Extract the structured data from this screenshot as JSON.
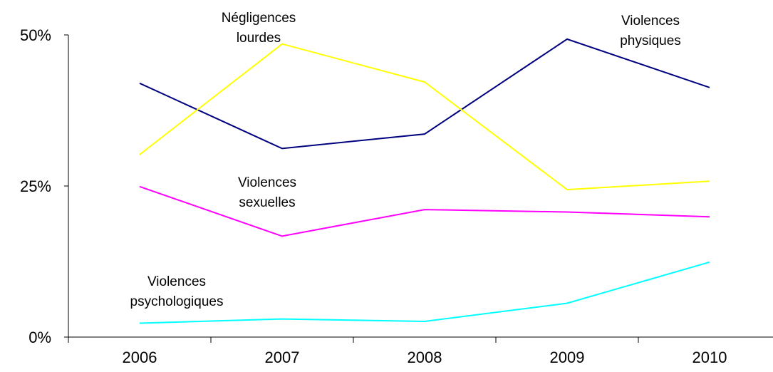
{
  "chart_data": {
    "type": "line",
    "categories": [
      "2006",
      "2007",
      "2008",
      "2009",
      "2010"
    ],
    "ylim": [
      0,
      50
    ],
    "yticks": [
      {
        "value": 0,
        "label": "0%"
      },
      {
        "value": 25,
        "label": "25%"
      },
      {
        "value": 50,
        "label": "50%"
      }
    ],
    "grid": false,
    "legend": "none",
    "series": [
      {
        "name": "Violences physiques",
        "label_lines": [
          "Violences",
          "physiques"
        ],
        "color": "#000080",
        "values": [
          42,
          31.2,
          33.6,
          49.3,
          41.3
        ]
      },
      {
        "name": "Négligences lourdes",
        "label_lines": [
          "Négligences",
          "lourdes"
        ],
        "color": "#FFFF00",
        "values": [
          30.2,
          48.5,
          42.2,
          24.4,
          25.8
        ]
      },
      {
        "name": "Violences sexuelles",
        "label_lines": [
          "Violences",
          "sexuelles"
        ],
        "color": "#FF00FF",
        "values": [
          24.9,
          16.7,
          21.1,
          20.7,
          19.9
        ]
      },
      {
        "name": "Violences psychologiques",
        "label_lines": [
          "Violences",
          "psychologiques"
        ],
        "color": "#00FFFF",
        "values": [
          2.3,
          3.0,
          2.6,
          5.6,
          12.4
        ]
      }
    ]
  }
}
